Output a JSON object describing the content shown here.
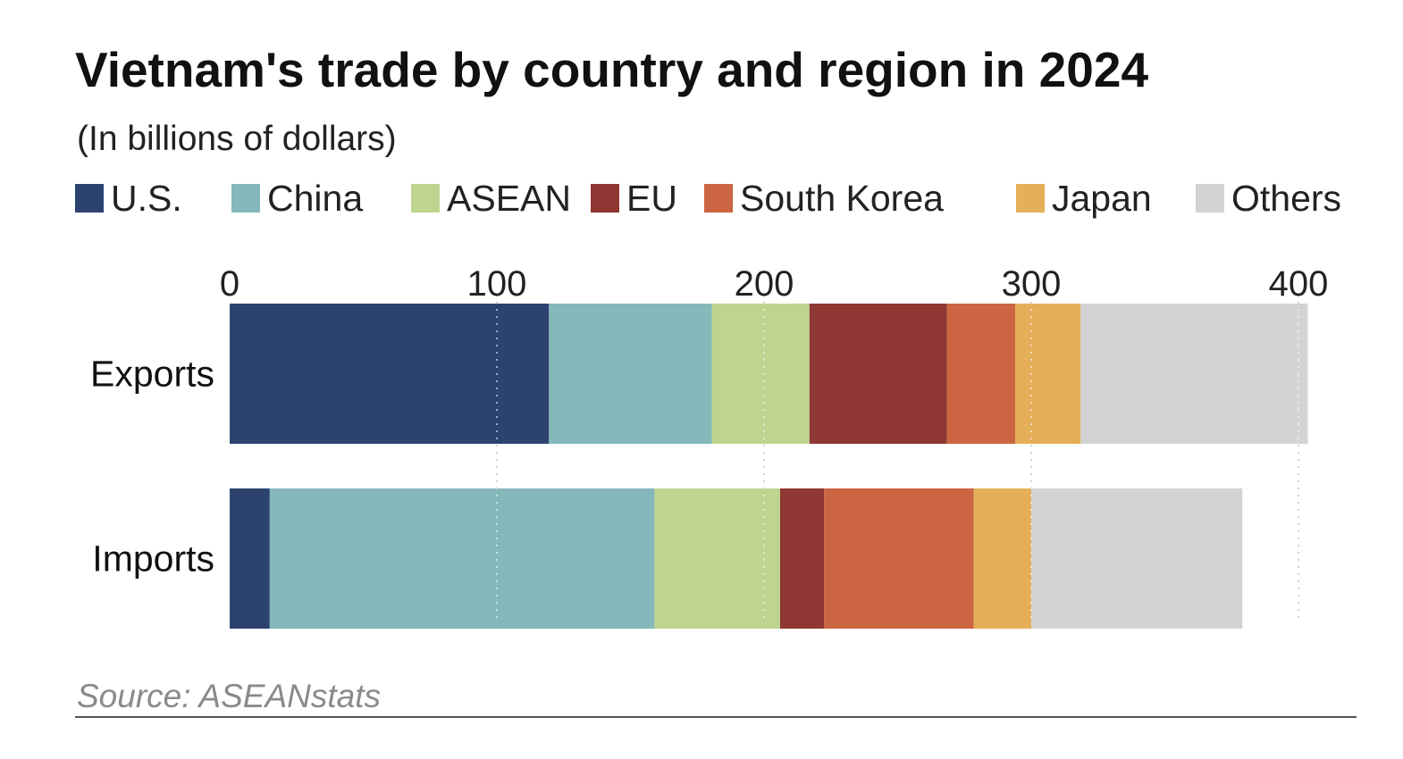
{
  "title": "Vietnam's trade by country and region in 2024",
  "subtitle": "(In billions of dollars)",
  "source": "Source: ASEANstats",
  "chart_data": {
    "type": "bar",
    "orientation": "horizontal",
    "stacked": true,
    "title": "Vietnam's trade by country and region in 2024",
    "subtitle": "(In billions of dollars)",
    "xlabel": "",
    "ylabel": "",
    "categories": [
      "Exports",
      "Imports"
    ],
    "xlim": [
      0,
      400
    ],
    "x_ticks": [
      "0",
      "100",
      "200",
      "300",
      "400"
    ],
    "x_tick_values": [
      0,
      100,
      200,
      300,
      400
    ],
    "x_axis_position": "top",
    "grid": "vertical dotted",
    "legend_position": "top",
    "series": [
      {
        "name": "U.S.",
        "color": "#2c4370",
        "values": [
          119.5,
          15
        ]
      },
      {
        "name": "China",
        "color": "#84b8ba",
        "values": [
          61,
          144
        ]
      },
      {
        "name": "ASEAN",
        "color": "#bed590",
        "values": [
          36.5,
          47
        ]
      },
      {
        "name": "EU",
        "color": "#8f3733",
        "values": [
          51.5,
          16.5
        ]
      },
      {
        "name": "South Korea",
        "color": "#cc6542",
        "values": [
          25.5,
          56
        ]
      },
      {
        "name": "Japan",
        "color": "#e5ae59",
        "values": [
          24.5,
          21.5
        ]
      },
      {
        "name": "Others",
        "color": "#d3d3d3",
        "values": [
          85,
          79
        ]
      }
    ]
  },
  "source_note": "Source: ASEANstats"
}
